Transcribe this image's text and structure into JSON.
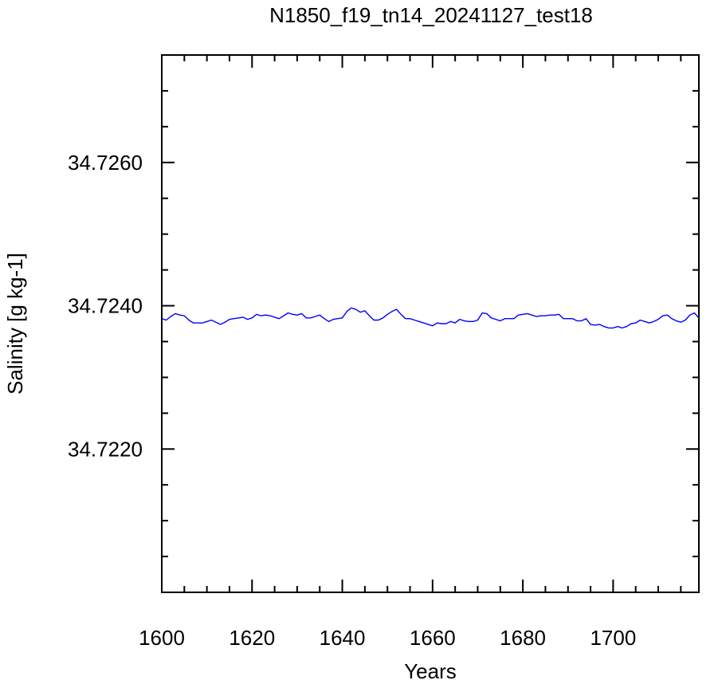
{
  "chart_data": {
    "type": "line",
    "title": "N1850_f19_tn14_20241127_test18",
    "xlabel": "Years",
    "ylabel": "Salinity [g kg-1]",
    "xlim": [
      1600,
      1719
    ],
    "ylim": [
      34.72,
      34.7275
    ],
    "x_ticks": [
      1600,
      1620,
      1640,
      1660,
      1680,
      1700
    ],
    "x_tick_labels": [
      "1600",
      "1620",
      "1640",
      "1660",
      "1680",
      "1700"
    ],
    "y_ticks": [
      34.722,
      34.724,
      34.726
    ],
    "y_tick_labels": [
      "34.7220",
      "34.7240",
      "34.7260"
    ],
    "grid": false,
    "line_color": "#0000ff",
    "series": [
      {
        "x_start": 1600,
        "x_step": 1,
        "values": [
          34.72382,
          34.7238,
          34.72385,
          34.72389,
          34.72387,
          34.72386,
          34.7238,
          34.72376,
          34.72376,
          34.72376,
          34.72378,
          34.7238,
          34.72377,
          34.72374,
          34.72377,
          34.72381,
          34.72382,
          34.72383,
          34.72384,
          34.72381,
          34.72383,
          34.72388,
          34.72386,
          34.72387,
          34.72386,
          34.72384,
          34.72382,
          34.72386,
          34.7239,
          34.72388,
          34.72387,
          34.72389,
          34.72383,
          34.72383,
          34.72385,
          34.72387,
          34.72382,
          34.72378,
          34.72381,
          34.72382,
          34.72383,
          34.72392,
          34.72397,
          34.72395,
          34.72391,
          34.72393,
          34.72386,
          34.7238,
          34.7238,
          34.72383,
          34.72388,
          34.72392,
          34.72395,
          34.72388,
          34.72382,
          34.72382,
          34.7238,
          34.72378,
          34.72376,
          34.72374,
          34.72372,
          34.72376,
          34.72375,
          34.72375,
          34.72378,
          34.72376,
          34.72381,
          34.72379,
          34.72378,
          34.72378,
          34.7238,
          34.7239,
          34.72389,
          34.72383,
          34.72381,
          34.72379,
          34.72382,
          34.72382,
          34.72382,
          34.72387,
          34.72388,
          34.72389,
          34.72387,
          34.72385,
          34.72386,
          34.72386,
          34.72387,
          34.72387,
          34.72388,
          34.72382,
          34.72382,
          34.72382,
          34.72379,
          34.72379,
          34.72382,
          34.72374,
          34.72373,
          34.72374,
          34.72371,
          34.72369,
          34.72369,
          34.72371,
          34.72369,
          34.72371,
          34.72375,
          34.72376,
          34.7238,
          34.72378,
          34.72376,
          34.72378,
          34.72381,
          34.72386,
          34.72387,
          34.72382,
          34.72379,
          34.72377,
          34.7238,
          34.72387,
          34.7239,
          34.72383
        ]
      }
    ]
  }
}
